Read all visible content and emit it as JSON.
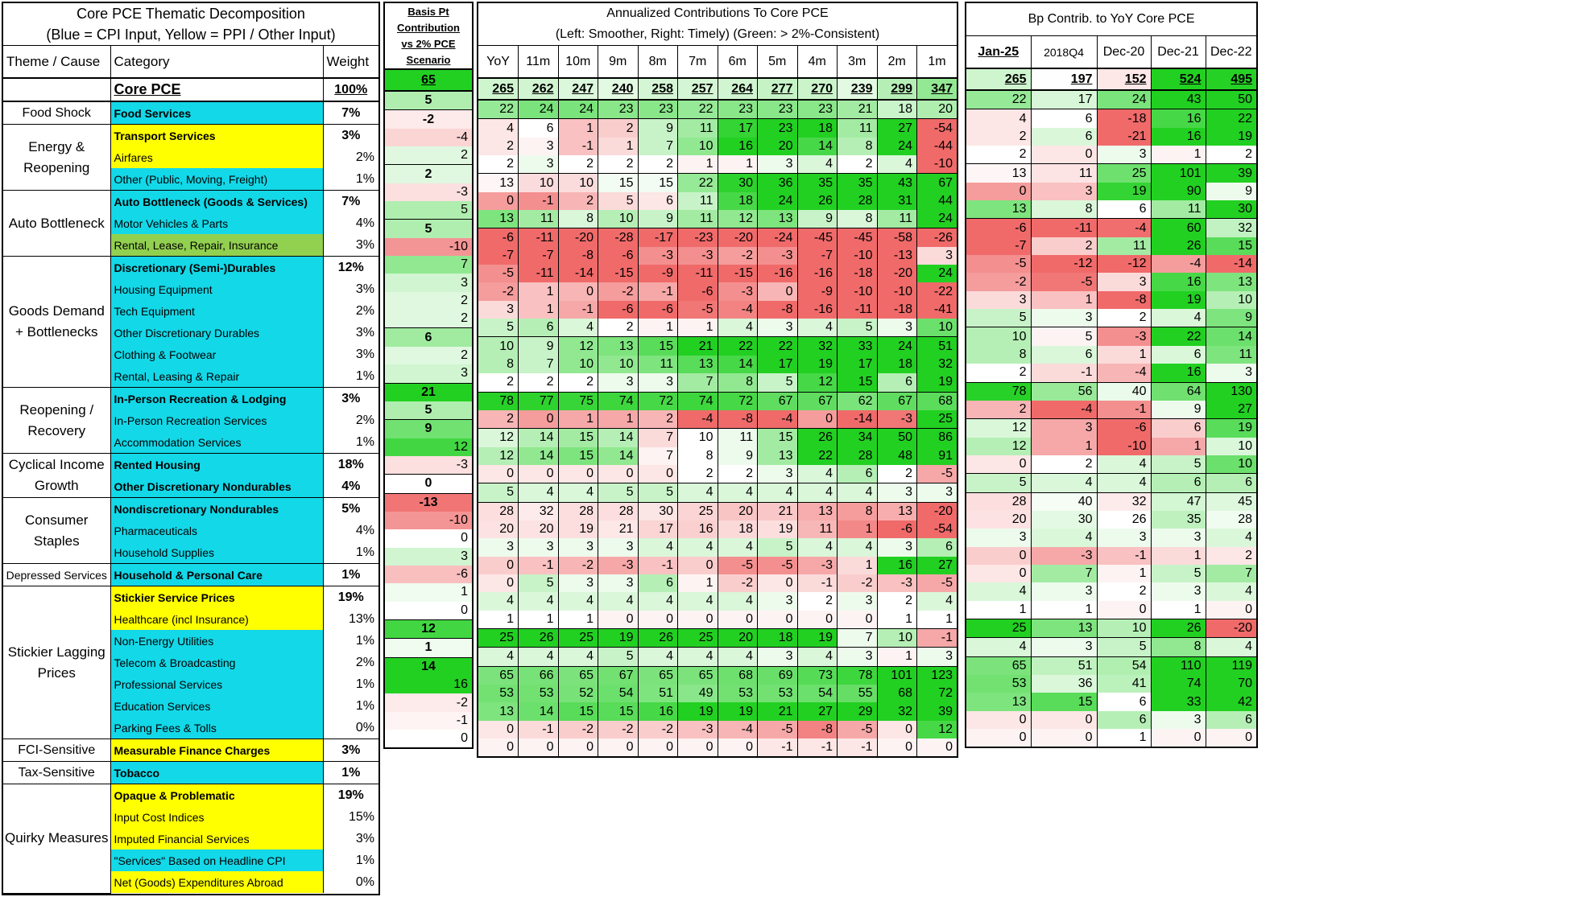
{
  "left_header": {
    "title_line1": "Core PCE Thematic  Decomposition",
    "title_line2": "(Blue = CPI Input, Yellow = PPI / Other Input)",
    "col_theme": "Theme / Cause",
    "col_category": "Category",
    "col_weight": "Weight"
  },
  "basis_header": {
    "line1": "Basis Pt",
    "line2": "Contribution",
    "line3": "vs 2% PCE",
    "line4": "Scenario"
  },
  "annualized_header": {
    "line1": "Annualized Contributions To Core PCE",
    "line2": "(Left: Smoother, Right: Timely) (Green: > 2%-Consistent)",
    "periods": [
      "YoY",
      "11m",
      "10m",
      "9m",
      "8m",
      "7m",
      "6m",
      "5m",
      "4m",
      "3m",
      "2m",
      "1m"
    ]
  },
  "yoy_header": {
    "title": "Bp Contrib. to YoY Core PCE",
    "periods": [
      "Jan-25",
      "2018Q4",
      "Dec-20",
      "Dec-21",
      "Dec-22"
    ]
  },
  "themes": [
    {
      "label": "Food Shock",
      "rows": 1
    },
    {
      "label": "Energy & Reopening",
      "rows": 3
    },
    {
      "label": "Auto Bottleneck",
      "rows": 3
    },
    {
      "label": "Goods Demand + Bottlenecks",
      "rows": 6
    },
    {
      "label": "Reopening / Recovery",
      "rows": 3
    },
    {
      "label": "Cyclical Income Growth",
      "rows": 2
    },
    {
      "label": "Consumer Staples",
      "rows": 3
    },
    {
      "label": "Depressed Services",
      "rows": 1
    },
    {
      "label": "Stickier Lagging Prices",
      "rows": 7
    },
    {
      "label": "FCI-Sensitive",
      "rows": 1
    },
    {
      "label": "Tax-Sensitive",
      "rows": 1
    },
    {
      "label": "Quirky Measures",
      "rows": 5
    }
  ],
  "total": {
    "category": "Core PCE",
    "weight": "100%",
    "bp": 65,
    "annualized": [
      265,
      262,
      247,
      240,
      258,
      257,
      264,
      277,
      270,
      239,
      299,
      347
    ],
    "yoy": [
      265,
      197,
      152,
      524,
      495
    ]
  },
  "rows": [
    {
      "category": "Food Services",
      "type": "cpi",
      "bold": true,
      "weight": "7%",
      "bp": 5,
      "annualized": [
        22,
        24,
        24,
        23,
        23,
        22,
        23,
        23,
        23,
        21,
        18,
        20
      ],
      "yoy": [
        22,
        17,
        24,
        43,
        50
      ]
    },
    {
      "category": "Transport Services",
      "type": "ppi",
      "bold": true,
      "weight": "3%",
      "bp": -2,
      "annualized": [
        4,
        6,
        1,
        2,
        9,
        11,
        17,
        23,
        18,
        11,
        27,
        -54
      ],
      "yoy": [
        4,
        6,
        -18,
        16,
        22
      ]
    },
    {
      "category": "Airfares",
      "type": "ppi",
      "bold": false,
      "weight": "2%",
      "bp": -4,
      "annualized": [
        2,
        3,
        -1,
        1,
        7,
        10,
        16,
        20,
        14,
        8,
        24,
        -44
      ],
      "yoy": [
        2,
        6,
        -21,
        16,
        19
      ]
    },
    {
      "category": "Other (Public, Moving, Freight)",
      "type": "cpi",
      "bold": false,
      "weight": "1%",
      "bp": 2,
      "annualized": [
        2,
        3,
        2,
        2,
        2,
        1,
        1,
        3,
        4,
        2,
        4,
        -10
      ],
      "yoy": [
        2,
        0,
        3,
        1,
        2
      ]
    },
    {
      "category": "Auto Bottleneck (Goods & Services)",
      "type": "cpi",
      "bold": true,
      "weight": "7%",
      "bp": 2,
      "annualized": [
        13,
        10,
        10,
        15,
        15,
        22,
        30,
        36,
        35,
        35,
        43,
        67
      ],
      "yoy": [
        13,
        11,
        25,
        101,
        39
      ]
    },
    {
      "category": "Motor Vehicles & Parts",
      "type": "cpi",
      "bold": false,
      "weight": "4%",
      "bp": -3,
      "annualized": [
        0,
        -1,
        2,
        5,
        6,
        11,
        18,
        24,
        26,
        28,
        31,
        44
      ],
      "yoy": [
        0,
        3,
        19,
        90,
        9
      ]
    },
    {
      "category": "Rental, Lease, Repair, Insurance",
      "type": "ltg",
      "bold": false,
      "weight": "3%",
      "bp": 5,
      "annualized": [
        13,
        11,
        8,
        10,
        9,
        11,
        12,
        13,
        9,
        8,
        11,
        24
      ],
      "yoy": [
        13,
        8,
        6,
        11,
        30
      ]
    },
    {
      "category": "Discretionary (Semi-)Durables",
      "type": "cpi",
      "bold": true,
      "weight": "12%",
      "bp": 5,
      "annualized": [
        -6,
        -11,
        -20,
        -28,
        -17,
        -23,
        -20,
        -24,
        -45,
        -45,
        -58,
        -26
      ],
      "yoy": [
        -6,
        -11,
        -4,
        60,
        32
      ]
    },
    {
      "category": "Housing Equipment",
      "type": "cpi",
      "bold": false,
      "weight": "3%",
      "bp": -10,
      "annualized": [
        -7,
        -7,
        -8,
        -6,
        -3,
        -3,
        -2,
        -3,
        -7,
        -10,
        -13,
        3
      ],
      "yoy": [
        -7,
        2,
        11,
        26,
        15
      ]
    },
    {
      "category": "Tech Equipment",
      "type": "cpi",
      "bold": false,
      "weight": "2%",
      "bp": 7,
      "annualized": [
        -5,
        -11,
        -14,
        -15,
        -9,
        -11,
        -15,
        -16,
        -16,
        -18,
        -20,
        24
      ],
      "yoy": [
        -5,
        -12,
        -12,
        -4,
        -14
      ]
    },
    {
      "category": "Other Discretionary Durables",
      "type": "cpi",
      "bold": false,
      "weight": "3%",
      "bp": 3,
      "annualized": [
        -2,
        1,
        0,
        -2,
        -1,
        -6,
        -3,
        0,
        -9,
        -10,
        -10,
        -22
      ],
      "yoy": [
        -2,
        -5,
        3,
        16,
        13
      ]
    },
    {
      "category": "Clothing & Footwear",
      "type": "cpi",
      "bold": false,
      "weight": "3%",
      "bp": 2,
      "annualized": [
        3,
        1,
        -1,
        -6,
        -6,
        -5,
        -4,
        -8,
        -16,
        -11,
        -18,
        -41
      ],
      "yoy": [
        3,
        1,
        -8,
        19,
        10
      ]
    },
    {
      "category": "Rental, Leasing & Repair",
      "type": "cpi",
      "bold": false,
      "weight": "1%",
      "bp": 2,
      "annualized": [
        5,
        6,
        4,
        2,
        1,
        1,
        4,
        3,
        4,
        5,
        3,
        10
      ],
      "yoy": [
        5,
        3,
        2,
        4,
        9
      ]
    },
    {
      "category": "In-Person Recreation & Lodging",
      "type": "cpi",
      "bold": true,
      "weight": "3%",
      "bp": 6,
      "annualized": [
        10,
        9,
        12,
        13,
        15,
        21,
        22,
        22,
        32,
        33,
        24,
        51
      ],
      "yoy": [
        10,
        5,
        -3,
        22,
        14
      ]
    },
    {
      "category": "In-Person Recreation Services",
      "type": "cpi",
      "bold": false,
      "weight": "2%",
      "bp": 2,
      "annualized": [
        8,
        7,
        10,
        10,
        11,
        13,
        14,
        17,
        19,
        17,
        18,
        32
      ],
      "yoy": [
        8,
        6,
        1,
        6,
        11
      ]
    },
    {
      "category": "Accommodation Services",
      "type": "cpi",
      "bold": false,
      "weight": "1%",
      "bp": 3,
      "annualized": [
        2,
        2,
        2,
        3,
        3,
        7,
        8,
        5,
        12,
        15,
        6,
        19
      ],
      "yoy": [
        2,
        -1,
        -4,
        16,
        3
      ]
    },
    {
      "category": "Rented Housing",
      "type": "cpi",
      "bold": true,
      "weight": "18%",
      "bp": 21,
      "annualized": [
        78,
        77,
        75,
        74,
        72,
        74,
        72,
        67,
        67,
        62,
        67,
        68
      ],
      "yoy": [
        78,
        56,
        40,
        64,
        130
      ]
    },
    {
      "category": "Other Discretionary Nondurables",
      "type": "cpi",
      "bold": true,
      "weight": "4%",
      "bp": 5,
      "annualized": [
        2,
        0,
        1,
        1,
        2,
        -4,
        -8,
        -4,
        0,
        -14,
        -3,
        25
      ],
      "yoy": [
        2,
        -4,
        -1,
        9,
        27
      ]
    },
    {
      "category": "Nondiscretionary Nondurables",
      "type": "cpi",
      "bold": true,
      "weight": "5%",
      "bp": 9,
      "annualized": [
        12,
        14,
        15,
        14,
        7,
        10,
        11,
        15,
        26,
        34,
        50,
        86
      ],
      "yoy": [
        12,
        3,
        -6,
        6,
        19
      ]
    },
    {
      "category": "Pharmaceuticals",
      "type": "cpi",
      "bold": false,
      "weight": "4%",
      "bp": 12,
      "annualized": [
        12,
        14,
        15,
        14,
        7,
        8,
        9,
        13,
        22,
        28,
        48,
        91
      ],
      "yoy": [
        12,
        1,
        -10,
        1,
        10
      ]
    },
    {
      "category": "Household Supplies",
      "type": "cpi",
      "bold": false,
      "weight": "1%",
      "bp": -3,
      "annualized": [
        0,
        0,
        0,
        0,
        0,
        2,
        2,
        3,
        4,
        6,
        2,
        -5
      ],
      "yoy": [
        0,
        2,
        4,
        5,
        10
      ]
    },
    {
      "category": "Household & Personal Care",
      "type": "cpi",
      "bold": true,
      "weight": "1%",
      "bp": 0,
      "annualized": [
        5,
        4,
        4,
        5,
        5,
        4,
        4,
        4,
        4,
        4,
        3,
        3
      ],
      "yoy": [
        5,
        4,
        4,
        6,
        6
      ]
    },
    {
      "category": "Stickier Service Prices",
      "type": "ppi",
      "bold": true,
      "weight": "19%",
      "bp": -13,
      "annualized": [
        28,
        32,
        28,
        28,
        30,
        25,
        20,
        21,
        13,
        8,
        13,
        -20
      ],
      "yoy": [
        28,
        40,
        32,
        47,
        45
      ]
    },
    {
      "category": "Healthcare (incl Insurance)",
      "type": "ppi",
      "bold": false,
      "weight": "13%",
      "bp": -10,
      "annualized": [
        20,
        20,
        19,
        21,
        17,
        16,
        18,
        19,
        11,
        1,
        -6,
        -54
      ],
      "yoy": [
        20,
        30,
        26,
        35,
        28
      ]
    },
    {
      "category": "Non-Energy Utilities",
      "type": "cpi",
      "bold": false,
      "weight": "1%",
      "bp": 0,
      "annualized": [
        3,
        3,
        3,
        3,
        4,
        4,
        4,
        5,
        4,
        4,
        3,
        6
      ],
      "yoy": [
        3,
        4,
        3,
        3,
        4
      ]
    },
    {
      "category": "Telecom & Broadcasting",
      "type": "cpi",
      "bold": false,
      "weight": "2%",
      "bp": 3,
      "annualized": [
        0,
        -1,
        -2,
        -3,
        -1,
        0,
        -5,
        -5,
        -3,
        1,
        16,
        27
      ],
      "yoy": [
        0,
        -3,
        -1,
        1,
        2
      ]
    },
    {
      "category": "Professional Services",
      "type": "cpi",
      "bold": false,
      "weight": "1%",
      "bp": -6,
      "annualized": [
        0,
        5,
        3,
        3,
        6,
        1,
        -2,
        0,
        -1,
        -2,
        -3,
        -5
      ],
      "yoy": [
        0,
        7,
        1,
        5,
        7
      ]
    },
    {
      "category": "Education Services",
      "type": "cpi",
      "bold": false,
      "weight": "1%",
      "bp": 1,
      "annualized": [
        4,
        4,
        4,
        4,
        4,
        4,
        4,
        3,
        2,
        3,
        2,
        4
      ],
      "yoy": [
        4,
        3,
        2,
        3,
        4
      ]
    },
    {
      "category": "Parking Fees & Tolls",
      "type": "cpi",
      "bold": false,
      "weight": "0%",
      "bp": 0,
      "annualized": [
        1,
        1,
        1,
        0,
        0,
        0,
        0,
        0,
        0,
        0,
        1,
        1
      ],
      "yoy": [
        1,
        1,
        0,
        1,
        0
      ]
    },
    {
      "category": "Measurable Finance Charges",
      "type": "ppi",
      "bold": true,
      "weight": "3%",
      "bp": 12,
      "annualized": [
        25,
        26,
        25,
        19,
        26,
        25,
        20,
        18,
        19,
        7,
        10,
        -1
      ],
      "yoy": [
        25,
        13,
        10,
        26,
        -20
      ]
    },
    {
      "category": "Tobacco",
      "type": "cpi",
      "bold": true,
      "weight": "1%",
      "bp": 1,
      "annualized": [
        4,
        4,
        4,
        5,
        4,
        4,
        4,
        3,
        4,
        3,
        1,
        3
      ],
      "yoy": [
        4,
        3,
        5,
        8,
        4
      ]
    },
    {
      "category": "Opaque & Problematic",
      "type": "ppi",
      "bold": true,
      "weight": "19%",
      "bp": 14,
      "annualized": [
        65,
        66,
        65,
        67,
        65,
        65,
        68,
        69,
        73,
        78,
        101,
        123
      ],
      "yoy": [
        65,
        51,
        54,
        110,
        119
      ]
    },
    {
      "category": "Input Cost Indices",
      "type": "ppi",
      "bold": false,
      "weight": "15%",
      "bp": 16,
      "annualized": [
        53,
        53,
        52,
        54,
        51,
        49,
        53,
        53,
        54,
        55,
        68,
        72
      ],
      "yoy": [
        53,
        36,
        41,
        74,
        70
      ]
    },
    {
      "category": "Imputed Financial Services",
      "type": "ppi",
      "bold": false,
      "weight": "3%",
      "bp": -2,
      "annualized": [
        13,
        14,
        15,
        15,
        16,
        19,
        19,
        21,
        27,
        29,
        32,
        39
      ],
      "yoy": [
        13,
        15,
        6,
        33,
        42
      ]
    },
    {
      "category": "\"Services\" Based on Headline CPI",
      "type": "cpi",
      "bold": false,
      "weight": "1%",
      "bp": -1,
      "annualized": [
        0,
        -1,
        -2,
        -2,
        -2,
        -3,
        -4,
        -5,
        -8,
        -5,
        0,
        12
      ],
      "yoy": [
        0,
        0,
        6,
        3,
        6
      ]
    },
    {
      "category": "Net (Goods) Expenditures Abroad",
      "type": "ppi",
      "bold": false,
      "weight": "0%",
      "bp": 0,
      "annualized": [
        0,
        0,
        0,
        0,
        0,
        0,
        0,
        -1,
        -1,
        -1,
        0,
        0
      ],
      "yoy": [
        0,
        0,
        1,
        0,
        0
      ]
    }
  ],
  "colors": {
    "cpi": "#13d8e8",
    "ppi": "#ffff00",
    "alt_green": "#92d050",
    "heat_green": "#22d022",
    "heat_red": "#f06a6a",
    "neutral": "#ffffff"
  }
}
